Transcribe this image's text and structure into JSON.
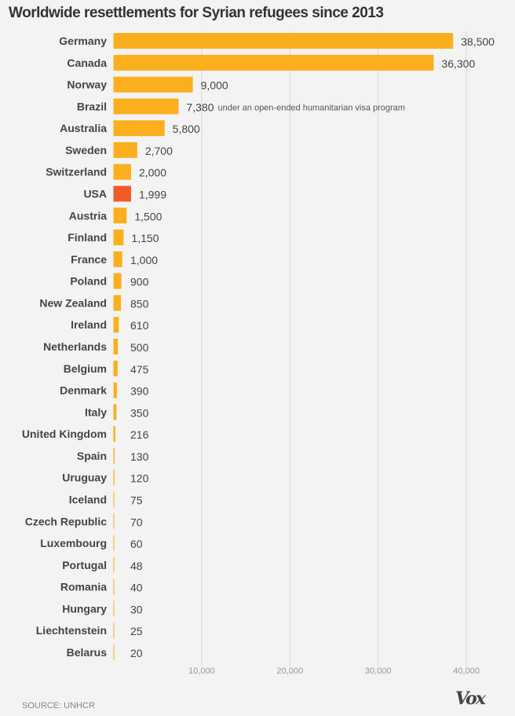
{
  "chart_data": {
    "type": "bar",
    "orientation": "horizontal",
    "title": "Worldwide resettlements for Syrian refugees since 2013",
    "categories": [
      "Germany",
      "Canada",
      "Norway",
      "Brazil",
      "Australia",
      "Sweden",
      "Switzerland",
      "USA",
      "Austria",
      "Finland",
      "France",
      "Poland",
      "New Zealand",
      "Ireland",
      "Netherlands",
      "Belgium",
      "Denmark",
      "Italy",
      "United Kingdom",
      "Spain",
      "Uruguay",
      "Iceland",
      "Czech Republic",
      "Luxembourg",
      "Portugal",
      "Romania",
      "Hungary",
      "Liechtenstein",
      "Belarus"
    ],
    "values": [
      38500,
      36300,
      9000,
      7380,
      5800,
      2700,
      2000,
      1999,
      1500,
      1150,
      1000,
      900,
      850,
      610,
      500,
      475,
      390,
      350,
      216,
      130,
      120,
      75,
      70,
      60,
      48,
      40,
      30,
      25,
      20
    ],
    "value_labels": [
      "38,500",
      "36,300",
      "9,000",
      "7,380",
      "5,800",
      "2,700",
      "2,000",
      "1,999",
      "1,500",
      "1,150",
      "1,000",
      "900",
      "850",
      "610",
      "500",
      "475",
      "390",
      "350",
      "216",
      "130",
      "120",
      "75",
      "70",
      "60",
      "48",
      "40",
      "30",
      "25",
      "20"
    ],
    "annotations": [
      {
        "category": "Brazil",
        "text": "under an open-ended humanitarian visa program"
      }
    ],
    "highlight": "USA",
    "xlim": [
      0,
      40000
    ],
    "xticks": [
      10000,
      20000,
      30000,
      40000
    ],
    "xtick_labels": [
      "10,000",
      "20,000",
      "30,000",
      "40,000"
    ],
    "grid": true,
    "colors": {
      "bar": "#fbaf1e",
      "highlight": "#f05a28"
    }
  },
  "footer": {
    "source": "SOURCE: UNHCR",
    "logo": "Vox"
  }
}
